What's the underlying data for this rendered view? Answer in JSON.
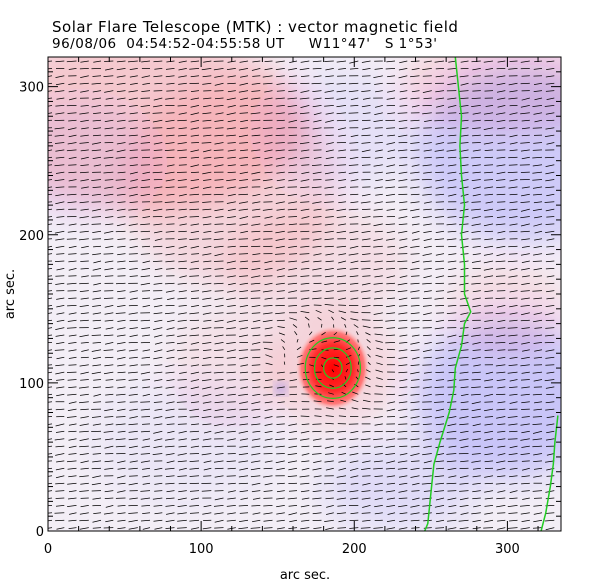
{
  "chart_data": {
    "type": "heatmap",
    "title": "Solar Flare Telescope (MTK) : vector magnetic field",
    "subtitle": {
      "date": "96/08/06",
      "time_range": "04:54:52-04:55:58 UT",
      "longitude": "W11°47'",
      "latitude": "S 1°53'"
    },
    "xlabel": "arc sec.",
    "ylabel": "arc sec.",
    "xlim": [
      0,
      335
    ],
    "ylim": [
      0,
      320
    ],
    "x_ticks": [
      0,
      100,
      200,
      300
    ],
    "y_ticks": [
      0,
      100,
      200,
      300
    ],
    "colormap": {
      "positive": "#ff0000",
      "negative": "#3333ff",
      "arrows": "#000000",
      "contour": "#22cc22"
    },
    "sunspot": {
      "center": [
        186,
        110
      ],
      "radius": 22,
      "polarity": "positive"
    },
    "minor_feature": {
      "center": [
        152,
        96
      ],
      "radius": 4,
      "polarity": "negative"
    },
    "vector_field": {
      "row_spacing": 5,
      "column_spacing": 8,
      "dominant_direction": "toward lower-left"
    },
    "contour_lines": [
      {
        "name": "limb contour left",
        "points": [
          [
            266,
            320
          ],
          [
            268,
            300
          ],
          [
            270,
            280
          ],
          [
            269,
            260
          ],
          [
            270,
            240
          ],
          [
            272,
            220
          ],
          [
            270,
            200
          ],
          [
            272,
            180
          ],
          [
            272,
            160
          ],
          [
            276,
            148
          ],
          [
            272,
            140
          ],
          [
            270,
            125
          ],
          [
            266,
            110
          ],
          [
            265,
            95
          ],
          [
            262,
            80
          ],
          [
            256,
            60
          ],
          [
            252,
            45
          ],
          [
            250,
            25
          ],
          [
            248,
            5
          ],
          [
            246,
            0
          ]
        ]
      },
      {
        "name": "limb contour right",
        "points": [
          [
            333,
            78
          ],
          [
            331,
            60
          ],
          [
            330,
            45
          ],
          [
            328,
            30
          ],
          [
            325,
            12
          ],
          [
            322,
            0
          ]
        ]
      }
    ],
    "spot_contours": [
      6,
      12,
      18
    ]
  }
}
